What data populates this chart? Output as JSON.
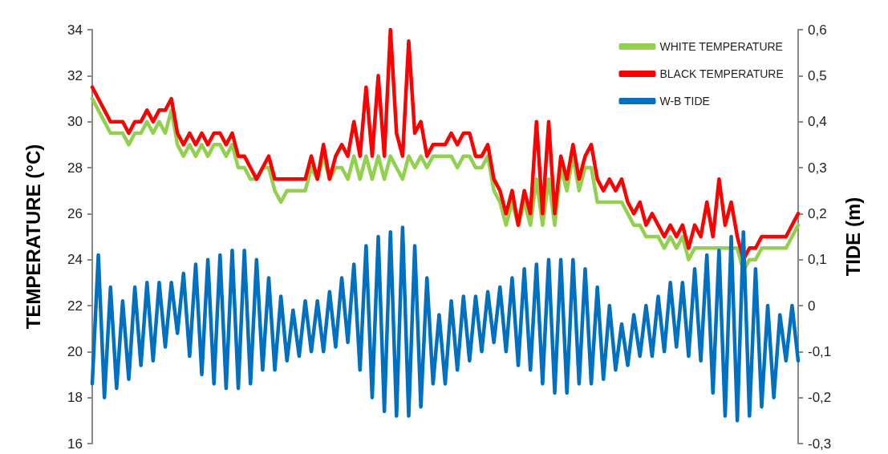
{
  "chart_data": {
    "type": "line",
    "ylabel": "TEMPERATURE (°C)",
    "y2label": "TIDE (m)",
    "legend": "top right",
    "grid": false,
    "tick_labels": "y",
    "categories": [
      null,
      null,
      null,
      null,
      null,
      null,
      null,
      null,
      null,
      null,
      null,
      null,
      null,
      null,
      null,
      null,
      null,
      null,
      null,
      null,
      null,
      null,
      null,
      null,
      null,
      null,
      null,
      null,
      null,
      null,
      null,
      null,
      null,
      null,
      null,
      null,
      null,
      null,
      null,
      null,
      null,
      null,
      null,
      null,
      null,
      null,
      null,
      null,
      null,
      null,
      null,
      null,
      null,
      null,
      null,
      null,
      null,
      null,
      null,
      null,
      null,
      null,
      null,
      null,
      null,
      null,
      null,
      null,
      null,
      null,
      null,
      null,
      null,
      null,
      null,
      null,
      null,
      null,
      null,
      null,
      null,
      null,
      null,
      null,
      null,
      null,
      null,
      null,
      null,
      null,
      null,
      null,
      null,
      null,
      null,
      null,
      null,
      null,
      null,
      null,
      null,
      null,
      null,
      null,
      null,
      null,
      null,
      null,
      null,
      null,
      null,
      null,
      null,
      null,
      null,
      null,
      null
    ],
    "ylim": [
      16,
      34
    ],
    "yticks": [
      16,
      18,
      20,
      22,
      24,
      26,
      28,
      30,
      32,
      34
    ],
    "y2lim": [
      -0.3,
      0.6
    ],
    "y2ticks": [
      {
        "value": -0.3,
        "label": "-0,3"
      },
      {
        "value": -0.2,
        "label": "-0,2"
      },
      {
        "value": -0.1,
        "label": "-0,1"
      },
      {
        "value": 0,
        "label": "0"
      },
      {
        "value": 0.1,
        "label": "0,1"
      },
      {
        "value": 0.2,
        "label": "0,2"
      },
      {
        "value": 0.3,
        "label": "0,3"
      },
      {
        "value": 0.4,
        "label": "0,4"
      },
      {
        "value": 0.5,
        "label": "0,5"
      },
      {
        "value": 0.6,
        "label": "0,6"
      }
    ],
    "series": [
      {
        "name": "WHITE TEMPERATURE",
        "color": "#92d050",
        "values": [
          31,
          30.5,
          30,
          29.5,
          29.5,
          29.5,
          29,
          29.5,
          29.5,
          30,
          29.5,
          30,
          29.5,
          30.5,
          29,
          28.5,
          29,
          28.5,
          29,
          28.5,
          29,
          29,
          28.5,
          29,
          28,
          28,
          27.5,
          27.5,
          28,
          28,
          27,
          26.5,
          27,
          27,
          27,
          27,
          28,
          27.5,
          28.5,
          27.5,
          28,
          28,
          27.5,
          28.5,
          27.5,
          28.5,
          27.5,
          28.5,
          27.5,
          28.5,
          28,
          27.5,
          28.5,
          28,
          28.5,
          28,
          28.5,
          28.5,
          28.5,
          28.5,
          28,
          28.5,
          28.5,
          28,
          28,
          28.5,
          27,
          26.5,
          25.5,
          26.5,
          25.5,
          26.5,
          25.5,
          27.5,
          25.5,
          27.5,
          25.5,
          28,
          27,
          28.5,
          27,
          28,
          28,
          26.5,
          26.5,
          26.5,
          26.5,
          26.5,
          26,
          25.5,
          25.5,
          25,
          25,
          25,
          24.5,
          25,
          24.5,
          25,
          24,
          24.5,
          24.5,
          24.5,
          24.5,
          24.5,
          24.5,
          24.5,
          24.5,
          23.5,
          24,
          24,
          24.5,
          24.5,
          24.5,
          24.5,
          24.5,
          25,
          25.5
        ]
      },
      {
        "name": "BLACK TEMPERATURE",
        "color": "#ff0000",
        "values": [
          31.5,
          31,
          30.5,
          30,
          30,
          30,
          29.5,
          30,
          30,
          30.5,
          30,
          30.5,
          30.5,
          31,
          29.5,
          29,
          29.5,
          29,
          29.5,
          29,
          29.5,
          29.5,
          29,
          29.5,
          28.5,
          28.5,
          28,
          27.5,
          28,
          28.5,
          27.5,
          27.5,
          27.5,
          27.5,
          27.5,
          27.5,
          28.5,
          27.5,
          29,
          27.5,
          28.5,
          29,
          28.5,
          30,
          28.5,
          31.5,
          28.5,
          32,
          28.5,
          34,
          29.5,
          28.5,
          33.5,
          29.5,
          30,
          28.5,
          29,
          29,
          29,
          29.5,
          29,
          29.5,
          29.5,
          28.5,
          28.5,
          29,
          27.5,
          27,
          26,
          27,
          25.5,
          27,
          26,
          30,
          26,
          30,
          26,
          28.5,
          27.5,
          29,
          27.5,
          28.5,
          29,
          27.5,
          27,
          27.5,
          27,
          27.5,
          26.5,
          26,
          26.5,
          25.5,
          26,
          25.5,
          25,
          25.5,
          25,
          25.5,
          24.5,
          25.5,
          25,
          26.5,
          25,
          27.5,
          25.5,
          26.5,
          25,
          24,
          24.5,
          24.5,
          25,
          25,
          25,
          25,
          25,
          25.5,
          26
        ]
      },
      {
        "name": "W-B TIDE",
        "color": "#0070c0",
        "axis": "y2",
        "values": [
          -0.17,
          0.11,
          -0.2,
          0.04,
          -0.18,
          0.01,
          -0.16,
          0.04,
          -0.13,
          0.05,
          -0.12,
          0.05,
          -0.09,
          0.05,
          -0.06,
          0.07,
          -0.11,
          0.09,
          -0.15,
          0.1,
          -0.17,
          0.11,
          -0.18,
          0.12,
          -0.18,
          0.12,
          -0.17,
          0.1,
          -0.14,
          0.06,
          -0.14,
          0.02,
          -0.12,
          -0.01,
          -0.11,
          0.01,
          -0.1,
          0.01,
          -0.1,
          0.03,
          -0.09,
          0.06,
          -0.08,
          0.09,
          -0.14,
          0.13,
          -0.2,
          0.15,
          -0.23,
          0.16,
          -0.24,
          0.17,
          -0.24,
          0.13,
          -0.22,
          0.06,
          -0.17,
          -0.02,
          -0.17,
          0.01,
          -0.14,
          0.02,
          -0.12,
          0.02,
          -0.1,
          0.03,
          -0.08,
          0.04,
          -0.1,
          0.06,
          -0.13,
          0.08,
          -0.14,
          0.09,
          -0.17,
          0.1,
          -0.19,
          0.1,
          -0.19,
          0.1,
          -0.17,
          0.08,
          -0.17,
          0.04,
          -0.16,
          0,
          -0.14,
          -0.04,
          -0.13,
          -0.02,
          -0.11,
          0,
          -0.11,
          0.02,
          -0.1,
          0.05,
          -0.09,
          0.05,
          -0.11,
          0.08,
          -0.12,
          0.11,
          -0.19,
          0.12,
          -0.24,
          0.15,
          -0.25,
          0.16,
          -0.24,
          0.08,
          -0.22,
          0,
          -0.2,
          -0.02,
          -0.12,
          0,
          -0.12
        ]
      }
    ]
  }
}
